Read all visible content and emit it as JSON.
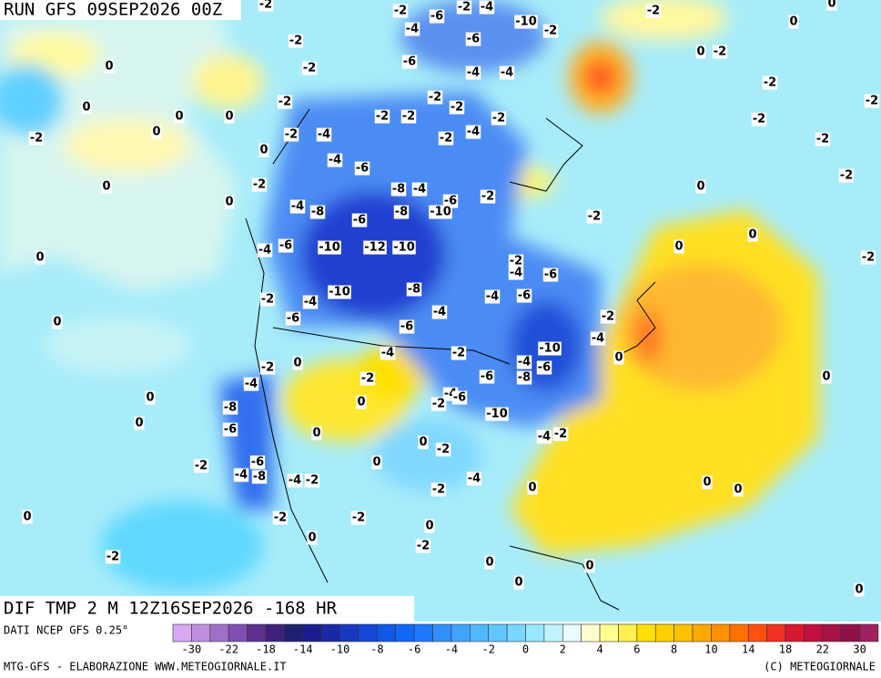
{
  "header": {
    "run": "RUN GFS 09SEP2026 00Z"
  },
  "map": {
    "contour_labels": [
      0,
      0,
      0,
      0,
      0,
      -2,
      0,
      0,
      0,
      -2,
      -2,
      -2,
      -2,
      -4,
      -2,
      -2,
      -6,
      -2,
      -4,
      -4,
      -10,
      -2,
      -6,
      -6,
      -4,
      -4,
      -2,
      -2,
      -2,
      -2,
      -2,
      -4,
      -2,
      -4,
      -6,
      -2,
      -8,
      -4,
      -6,
      -2,
      -4,
      -8,
      -6,
      -8,
      -10,
      -2,
      -4,
      -6,
      -10,
      -12,
      -10,
      -8,
      -2,
      -4,
      -6,
      -4,
      -6,
      -10,
      -4,
      -2,
      -6,
      -4,
      -6,
      -2,
      -4,
      -10,
      -4,
      -2,
      -4,
      -6,
      0,
      -2,
      0,
      -2,
      -4,
      -8,
      -6,
      -4,
      -6,
      -2,
      0,
      0,
      -8,
      -6,
      0,
      0,
      -10,
      -2,
      -4,
      0,
      -2,
      0,
      -6,
      -2,
      -4,
      -8,
      -4,
      -2,
      -4,
      -2,
      0,
      0,
      0,
      0,
      -2,
      -2,
      0,
      0,
      -2,
      -2,
      0,
      0,
      0,
      0,
      0,
      0,
      0,
      -2,
      -2,
      -2,
      -2,
      -2,
      -2,
      0,
      -2,
      0,
      0,
      -2,
      0,
      0,
      0
    ]
  },
  "footer": {
    "title": "DIF TMP 2 M 12Z16SEP2026 -168 HR",
    "source": "DATI NCEP GFS 0.25°",
    "colorbar_ticks": [
      -30,
      -22,
      -18,
      -14,
      -10,
      -8,
      -6,
      -4,
      -2,
      0,
      2,
      4,
      6,
      8,
      10,
      14,
      18,
      22,
      30
    ],
    "credit": "MTG-GFS - ELABORAZIONE WWW.METEOGIORNALE.IT",
    "copyright": "(C) METEOGIORNALE"
  }
}
